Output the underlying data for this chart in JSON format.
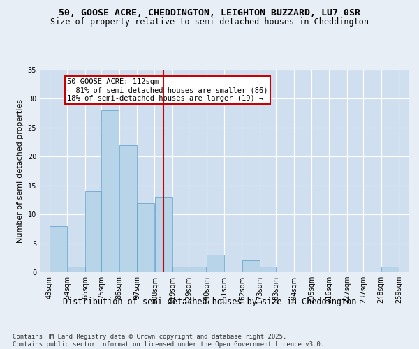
{
  "title1": "50, GOOSE ACRE, CHEDDINGTON, LEIGHTON BUZZARD, LU7 0SR",
  "title2": "Size of property relative to semi-detached houses in Cheddington",
  "xlabel": "Distribution of semi-detached houses by size in Cheddington",
  "ylabel": "Number of semi-detached properties",
  "bin_labels": [
    "43sqm",
    "54sqm",
    "65sqm",
    "75sqm",
    "86sqm",
    "97sqm",
    "108sqm",
    "119sqm",
    "129sqm",
    "140sqm",
    "151sqm",
    "162sqm",
    "173sqm",
    "183sqm",
    "194sqm",
    "205sqm",
    "216sqm",
    "227sqm",
    "237sqm",
    "248sqm",
    "259sqm"
  ],
  "bar_heights": [
    8,
    1,
    14,
    28,
    22,
    12,
    13,
    1,
    1,
    3,
    0,
    2,
    1,
    0,
    0,
    0,
    0,
    0,
    0,
    1,
    0
  ],
  "bin_edges": [
    43,
    54,
    65,
    75,
    86,
    97,
    108,
    119,
    129,
    140,
    151,
    162,
    173,
    183,
    194,
    205,
    216,
    227,
    237,
    248,
    259
  ],
  "bar_color": "#b8d4e8",
  "bar_edge_color": "#5a9ec9",
  "vline_x": 113.5,
  "vline_color": "#cc0000",
  "annotation_text": "50 GOOSE ACRE: 112sqm\n← 81% of semi-detached houses are smaller (86)\n18% of semi-detached houses are larger (19) →",
  "annotation_box_color": "#ffffff",
  "annotation_box_edge": "#cc0000",
  "ylim": [
    0,
    35
  ],
  "yticks": [
    0,
    5,
    10,
    15,
    20,
    25,
    30,
    35
  ],
  "bg_color": "#e8eef5",
  "plot_bg_color": "#d0dff0",
  "footer_text": "Contains HM Land Registry data © Crown copyright and database right 2025.\nContains public sector information licensed under the Open Government Licence v3.0.",
  "title1_fontsize": 9.5,
  "title2_fontsize": 8.5,
  "xlabel_fontsize": 8.5,
  "ylabel_fontsize": 8,
  "tick_fontsize": 7,
  "annotation_fontsize": 7.5,
  "footer_fontsize": 6.5
}
